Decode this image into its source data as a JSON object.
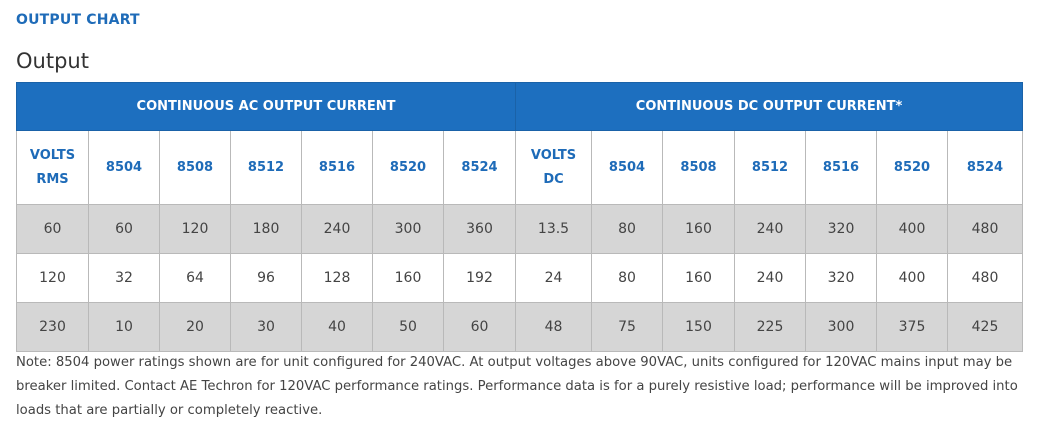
{
  "section_title": "OUTPUT CHART",
  "table_caption": "Output",
  "groups": {
    "ac": "CONTINUOUS AC OUTPUT CURRENT",
    "dc": "CONTINUOUS DC OUTPUT CURRENT*"
  },
  "columns": {
    "ac_volts_line1": "VOLTS",
    "ac_volts_line2": "RMS",
    "ac_models": [
      "8504",
      "8508",
      "8512",
      "8516",
      "8520",
      "8524"
    ],
    "dc_volts_line1": "VOLTS",
    "dc_volts_line2": "DC",
    "dc_models": [
      "8504",
      "8508",
      "8512",
      "8516",
      "8520",
      "8524"
    ]
  },
  "rows": [
    {
      "ac_volts": "60",
      "ac_values": [
        "60",
        "120",
        "180",
        "240",
        "300",
        "360"
      ],
      "dc_volts": "13.5",
      "dc_values": [
        "80",
        "160",
        "240",
        "320",
        "400",
        "480"
      ]
    },
    {
      "ac_volts": "120",
      "ac_values": [
        "32",
        "64",
        "96",
        "128",
        "160",
        "192"
      ],
      "dc_volts": "24",
      "dc_values": [
        "80",
        "160",
        "240",
        "320",
        "400",
        "480"
      ]
    },
    {
      "ac_volts": "230",
      "ac_values": [
        "10",
        "20",
        "30",
        "40",
        "50",
        "60"
      ],
      "dc_volts": "48",
      "dc_values": [
        "75",
        "150",
        "225",
        "300",
        "375",
        "425"
      ]
    }
  ],
  "note": "Note: 8504 power ratings shown are for unit configured for 240VAC. At output voltages above 90VAC, units configured for 120VAC mains input may be breaker limited. Contact AE Techron for 120VAC performance ratings. Performance data is for a purely resistive load; performance will be improved into loads that are partially or completely reactive."
}
